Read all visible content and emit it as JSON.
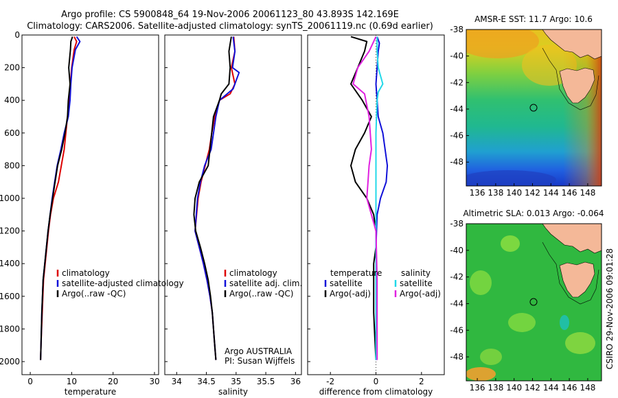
{
  "title_line1": "Argo profile: CS 5900848_64 19-Nov-2006 20061123_80 43.893S 142.169E",
  "title_line2": "Climatology: CARS2006. Satellite-adjusted climatology: synTS_20061119.nc (0.69d earlier)",
  "side_label": "CSIRO 29-Nov-2006 09:01:28",
  "colors": {
    "clim": "#dd0000",
    "sat": "#1010d8",
    "argo": "#000000",
    "argo_adj": "#e020e0",
    "sat_sal": "#20d8e8",
    "land": "#f4b898",
    "marker": "#000000"
  },
  "chart_data": [
    {
      "type": "line",
      "name": "temperature-profile",
      "xlabel": "temperature",
      "ylabel": "",
      "xlim": [
        -2,
        31
      ],
      "ylim": [
        2080,
        0
      ],
      "xticks": [
        0,
        10,
        20,
        30
      ],
      "yticks": [
        0,
        200,
        400,
        600,
        800,
        1000,
        1200,
        1400,
        1600,
        1800,
        2000
      ],
      "legend": {
        "position": "lower-right",
        "entries": [
          "climatology",
          "satellite-adjusted climatology",
          "Argo(..raw -QC)"
        ]
      },
      "series": [
        {
          "name": "climatology",
          "color": "clim",
          "x": [
            10.6,
            11.2,
            10.6,
            10.0,
            9.7,
            9.5,
            9.0,
            8.6,
            8.2,
            7.5,
            6.8,
            5.6,
            4.9,
            4.4,
            4.0,
            3.6,
            3.2,
            2.9,
            2.6,
            2.5
          ],
          "y": [
            10,
            40,
            90,
            200,
            300,
            400,
            500,
            600,
            700,
            800,
            900,
            1000,
            1100,
            1200,
            1300,
            1400,
            1500,
            1700,
            1900,
            1990
          ]
        },
        {
          "name": "satellite-adjusted climatology",
          "color": "sat",
          "x": [
            11.2,
            12.0,
            10.9,
            10.1,
            9.8,
            9.6,
            9.2,
            8.2,
            7.4,
            6.5,
            5.9,
            5.3,
            4.8,
            4.3,
            3.9,
            3.5,
            3.1,
            2.8,
            2.6,
            2.5
          ],
          "y": [
            10,
            40,
            90,
            200,
            300,
            400,
            500,
            600,
            700,
            800,
            900,
            1000,
            1100,
            1200,
            1300,
            1400,
            1500,
            1700,
            1900,
            1990
          ]
        },
        {
          "name": "Argo(..raw -QC)",
          "color": "argo",
          "x": [
            10.2,
            9.8,
            9.7,
            9.3,
            9.6,
            9.2,
            9.0,
            8.4,
            7.6,
            6.6,
            6.0,
            5.4,
            4.8,
            4.3,
            3.9,
            3.5,
            3.1,
            2.8,
            2.6,
            2.5
          ],
          "y": [
            10,
            40,
            90,
            200,
            300,
            400,
            500,
            600,
            700,
            800,
            900,
            1000,
            1100,
            1200,
            1300,
            1400,
            1500,
            1700,
            1900,
            1990
          ]
        }
      ]
    },
    {
      "type": "line",
      "name": "salinity-profile",
      "xlabel": "salinity",
      "ylabel": "",
      "xlim": [
        33.8,
        36.1
      ],
      "ylim": [
        2080,
        0
      ],
      "xticks": [
        34,
        34.5,
        35,
        35.5,
        36
      ],
      "legend": {
        "position": "lower-right",
        "entries": [
          "climatology",
          "satellite adj. clim.",
          "Argo(..raw -QC)"
        ]
      },
      "annotation": [
        "Argo AUSTRALIA",
        "PI: Susan Wijffels"
      ],
      "series": [
        {
          "name": "climatology",
          "color": "clim",
          "x": [
            34.96,
            34.98,
            34.92,
            34.98,
            34.9,
            34.72,
            34.64,
            34.59,
            34.55,
            34.48,
            34.41,
            34.36,
            34.31,
            34.38,
            34.45,
            34.51,
            34.56,
            34.6,
            34.63,
            34.66
          ],
          "y": [
            10,
            100,
            200,
            300,
            360,
            400,
            500,
            600,
            700,
            800,
            900,
            1000,
            1200,
            1300,
            1400,
            1500,
            1600,
            1700,
            1850,
            1990
          ]
        },
        {
          "name": "satellite adj. clim.",
          "color": "sat",
          "x": [
            34.95,
            34.98,
            34.94,
            35.05,
            35.0,
            34.95,
            34.72,
            34.66,
            34.58,
            34.47,
            34.4,
            34.35,
            34.31,
            34.38,
            34.45,
            34.51,
            34.56,
            34.6,
            34.63,
            34.66
          ],
          "y": [
            10,
            100,
            200,
            230,
            280,
            330,
            400,
            500,
            700,
            800,
            900,
            1000,
            1200,
            1300,
            1400,
            1500,
            1600,
            1700,
            1850,
            1990
          ]
        },
        {
          "name": "Argo(..raw -QC)",
          "color": "argo",
          "x": [
            34.92,
            34.88,
            34.9,
            34.88,
            34.75,
            34.72,
            34.62,
            34.56,
            34.53,
            34.38,
            34.31,
            34.29,
            34.32,
            34.4,
            34.47,
            34.53,
            34.57,
            34.6,
            34.63,
            34.66
          ],
          "y": [
            10,
            100,
            200,
            300,
            360,
            400,
            500,
            700,
            800,
            900,
            1000,
            1100,
            1200,
            1300,
            1400,
            1500,
            1600,
            1700,
            1850,
            1990
          ]
        }
      ]
    },
    {
      "type": "line",
      "name": "difference-profile",
      "xlabel": "difference from climatology",
      "ylabel": "",
      "xlim": [
        -3.0,
        3.0
      ],
      "ylim": [
        2080,
        0
      ],
      "xticks": [
        -2,
        0,
        2
      ],
      "legend": {
        "position": "lower-left",
        "columns": [
          {
            "heading": "temperature",
            "entries": [
              "satellite",
              "Argo(-adj)"
            ]
          },
          {
            "heading": "salinity",
            "entries": [
              "satellite",
              "Argo(-adj)"
            ]
          }
        ]
      },
      "series": [
        {
          "name": "temperature satellite",
          "color": "sat",
          "x": [
            0.05,
            0.15,
            0.1,
            0.05,
            0.0,
            0.05,
            0.1,
            0.3,
            0.4,
            0.5,
            0.45,
            0.2,
            0.05,
            0.0,
            0.0,
            0.0,
            0.0,
            0.0,
            0.0,
            0.0
          ],
          "y": [
            10,
            50,
            100,
            200,
            300,
            400,
            500,
            600,
            700,
            800,
            900,
            1000,
            1100,
            1300,
            1400,
            1500,
            1600,
            1700,
            1850,
            1990
          ]
        },
        {
          "name": "temperature Argo(-adj)",
          "color": "argo",
          "x": [
            -1.1,
            -0.4,
            -0.5,
            -0.8,
            -1.1,
            -0.6,
            -0.2,
            -0.5,
            -0.9,
            -1.1,
            -0.9,
            -0.4,
            -0.1,
            0.0,
            0.0,
            -0.1,
            -0.1,
            -0.1,
            -0.05,
            0.0
          ],
          "y": [
            10,
            40,
            100,
            200,
            300,
            400,
            500,
            600,
            700,
            800,
            900,
            1000,
            1100,
            1200,
            1300,
            1400,
            1500,
            1700,
            1850,
            1990
          ]
        },
        {
          "name": "salinity satellite",
          "color": "sat_sal",
          "x": [
            0.05,
            0.05,
            0.1,
            0.3,
            0.1,
            0.05,
            0.0,
            0.0,
            0.0,
            0.0,
            0.0,
            0.0,
            0.0,
            0.0,
            0.0
          ],
          "y": [
            10,
            100,
            200,
            300,
            350,
            400,
            600,
            800,
            1000,
            1200,
            1400,
            1600,
            1800,
            1900,
            1990
          ]
        },
        {
          "name": "salinity Argo(-adj)",
          "color": "argo_adj",
          "x": [
            0.0,
            -0.3,
            -0.8,
            -1.0,
            -0.5,
            -0.3,
            -0.2,
            -0.3,
            -0.35,
            -0.4,
            -0.2,
            0.0,
            0.05,
            0.05
          ],
          "y": [
            10,
            100,
            200,
            300,
            360,
            500,
            700,
            800,
            900,
            1000,
            1100,
            1200,
            1500,
            1990
          ]
        }
      ]
    },
    {
      "type": "heatmap",
      "name": "sst-map",
      "title": "AMSR-E SST: 11.7 Argo: 10.6",
      "xticks": [
        136,
        138,
        140,
        142,
        144,
        146,
        148
      ],
      "yticks": [
        -38,
        -40,
        -42,
        -44,
        -46,
        -48
      ],
      "xlim": [
        134.8,
        149.5
      ],
      "ylim": [
        -49.8,
        -38
      ],
      "marker": {
        "lon": 142.169,
        "lat": -43.893
      }
    },
    {
      "type": "heatmap",
      "name": "sla-map",
      "title": "Altimetric SLA: 0.013 Argo: -0.064",
      "xticks": [
        136,
        138,
        140,
        142,
        144,
        146,
        148
      ],
      "yticks": [
        -38,
        -40,
        -42,
        -44,
        -46,
        -48
      ],
      "xlim": [
        134.8,
        149.5
      ],
      "ylim": [
        -49.8,
        -38
      ],
      "marker": {
        "lon": 142.169,
        "lat": -43.893
      }
    }
  ]
}
